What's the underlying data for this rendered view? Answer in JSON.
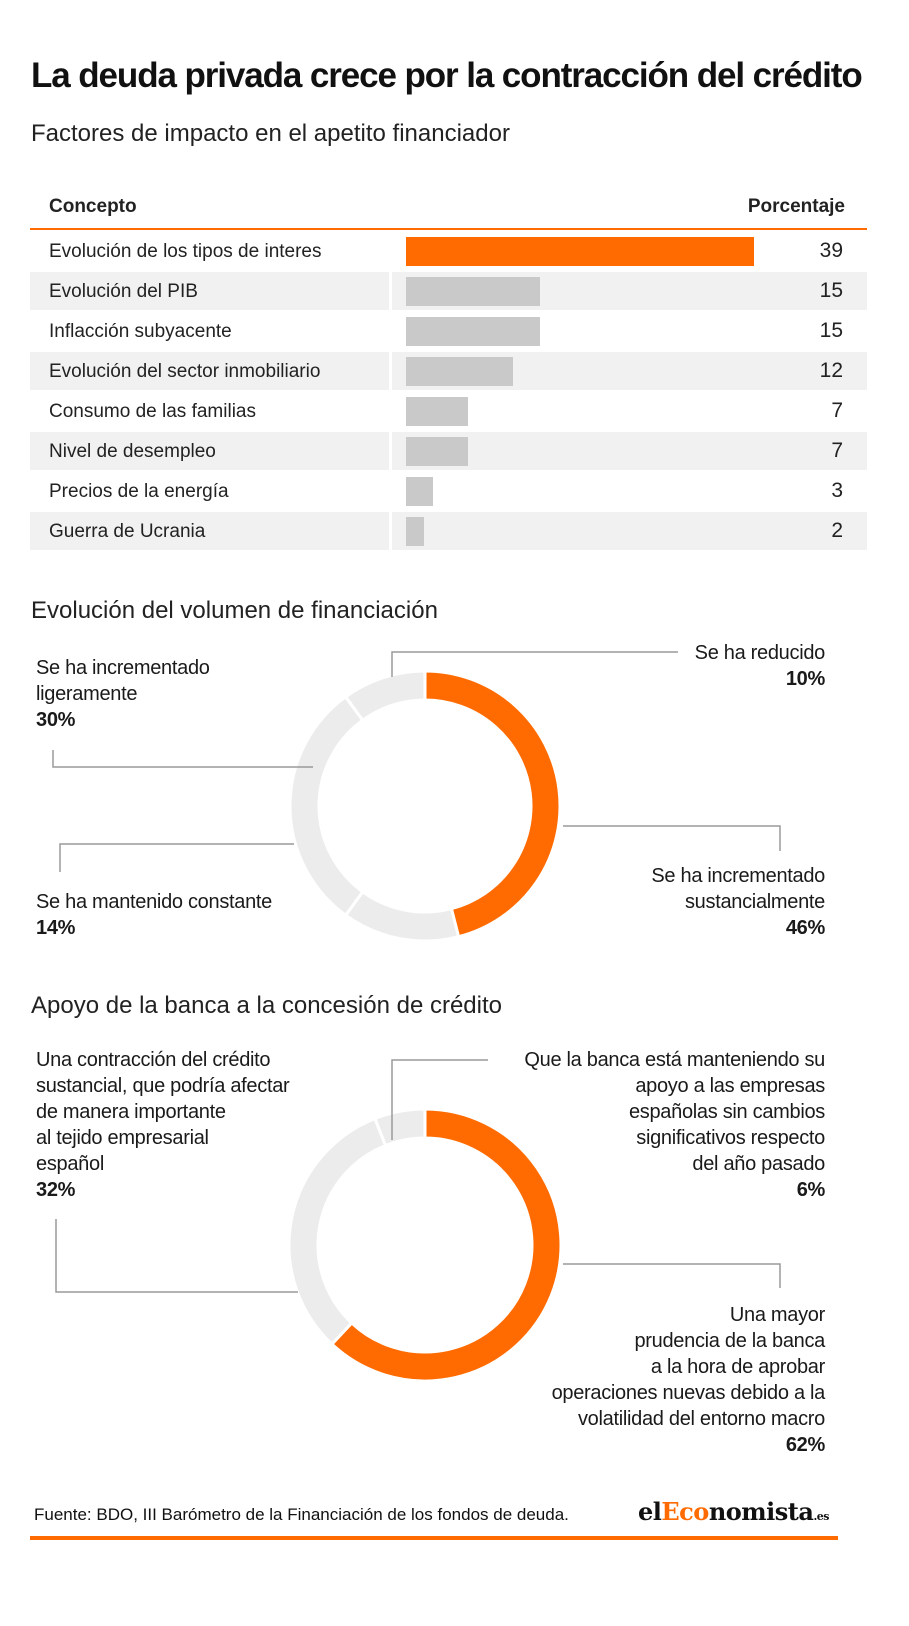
{
  "title": "La deuda privada crece por la contracción del crédito",
  "sections": {
    "factors": "Factores de impacto en el apetito financiador",
    "volume": "Evolución del volumen de financiación",
    "support": "Apoyo de la banca a la concesión de crédito"
  },
  "colors": {
    "accent": "#ff6b00",
    "bar_neutral": "#c9c9c9",
    "ring_neutral": "#ececec",
    "row_shade": "#f1f1f1",
    "leader": "#9a9a9a"
  },
  "footer": {
    "source": "Fuente: BDO, III Barómetro de la Financiación de los fondos de deuda.",
    "logo_el": "el",
    "logo_eco": "Eco",
    "logo_nomista": "nomista",
    "logo_tld": ".es"
  },
  "chart_data": [
    {
      "type": "bar",
      "title": "Factores de impacto en el apetito financiador",
      "columns": [
        "Concepto",
        "Porcentaje"
      ],
      "categories": [
        "Evolución de los tipos de interes",
        "Evolución del PIB",
        "Inflacción subyacente",
        "Evolución del sector inmobiliario",
        "Consumo de las familias",
        "Nivel de desempleo",
        "Precios de la energía",
        "Guerra de Ucrania"
      ],
      "values": [
        39,
        15,
        15,
        12,
        7,
        7,
        3,
        2
      ],
      "highlight_index": 0,
      "xlim": [
        0,
        39
      ]
    },
    {
      "type": "pie",
      "title": "Evolución del volumen de financiación",
      "slices": [
        {
          "label": "Se ha incrementado sustancialmente",
          "value": 46,
          "pct": "46%",
          "color": "#ff6b00"
        },
        {
          "label": "Se ha mantenido constante",
          "value": 14,
          "pct": "14%",
          "color": "#ececec"
        },
        {
          "label": "Se ha incrementado ligeramente",
          "value": 30,
          "pct": "30%",
          "color": "#ececec"
        },
        {
          "label": "Se ha reducido",
          "value": 10,
          "pct": "10%",
          "color": "#ececec"
        }
      ],
      "labels_text": {
        "reducido_1": "Se ha reducido",
        "lig_1": "Se ha incrementado",
        "lig_2": "ligeramente",
        "const_1": "Se ha mantenido constante",
        "sust_1": "Se ha incrementado",
        "sust_2": "sustancialmente"
      }
    },
    {
      "type": "pie",
      "title": "Apoyo de la banca a la concesión de crédito",
      "slices": [
        {
          "label": "Una mayor prudencia de la banca a la hora de aprobar operaciones nuevas debido a la volatilidad del entorno macro",
          "value": 62,
          "pct": "62%",
          "color": "#ff6b00"
        },
        {
          "label": "Una contracción del crédito sustancial, que podría afectar de manera importante al tejido empresarial español",
          "value": 32,
          "pct": "32%",
          "color": "#ececec"
        },
        {
          "label": "Que la banca está manteniendo su apoyo a las empresas españolas sin cambios significativos respecto del año pasado",
          "value": 6,
          "pct": "6%",
          "color": "#ececec"
        }
      ],
      "labels_text": {
        "contr_1": "Una contracción del crédito",
        "contr_2": "sustancial, que podría afectar",
        "contr_3": "de manera importante",
        "contr_4": "al tejido empresarial",
        "contr_5": "español",
        "mant_1": "Que la banca está manteniendo su",
        "mant_2": "apoyo a las empresas",
        "mant_3": "españolas sin cambios",
        "mant_4": "significativos respecto",
        "mant_5": "del año pasado",
        "prud_1": "Una mayor",
        "prud_2": "prudencia de la banca",
        "prud_3": "a la hora de aprobar",
        "prud_4": "operaciones nuevas debido a la",
        "prud_5": "volatilidad del entorno macro"
      }
    }
  ]
}
